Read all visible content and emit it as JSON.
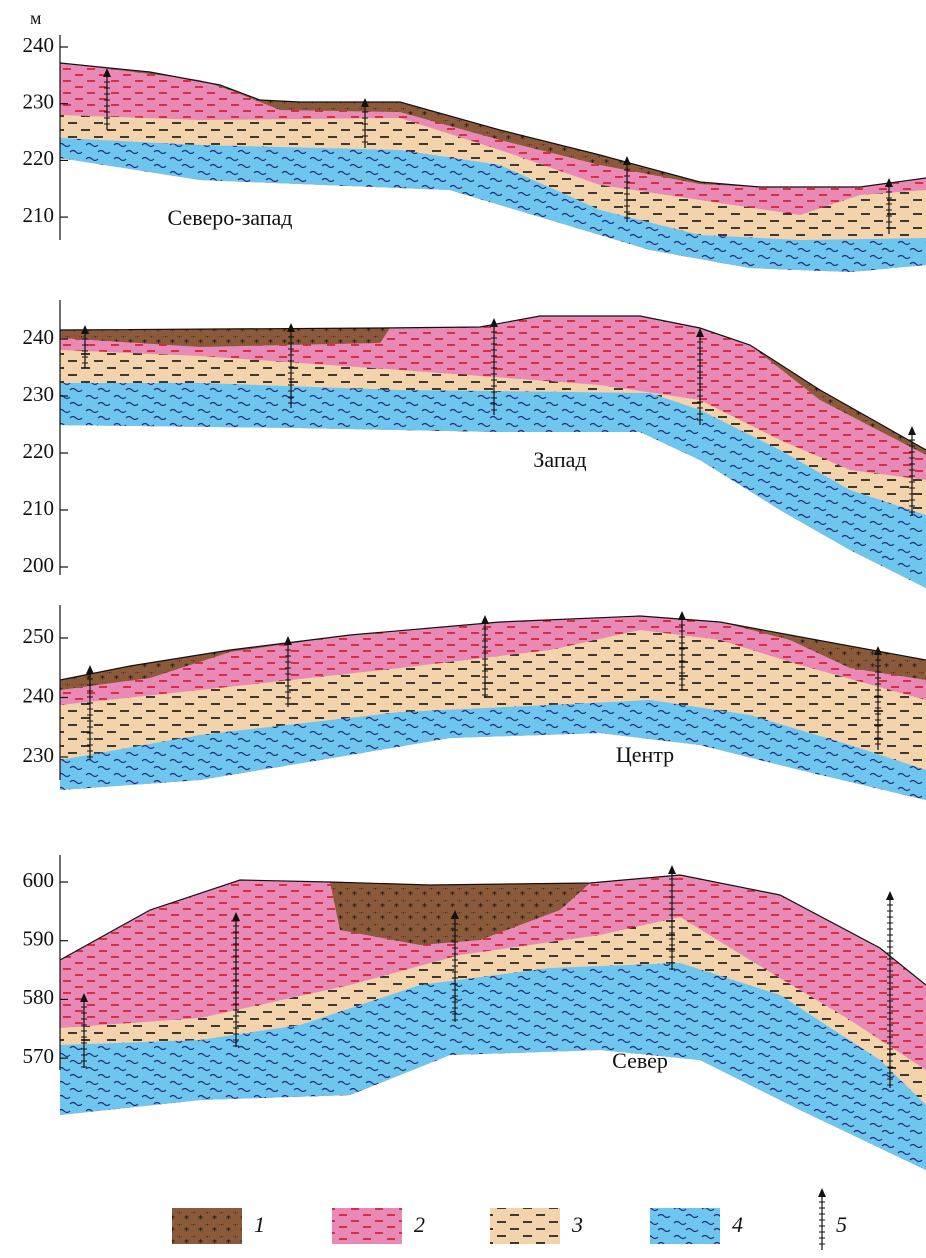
{
  "axis_unit": "м",
  "panels": [
    {
      "label": "Северо-запад",
      "yticks": [
        240,
        230,
        220,
        210
      ]
    },
    {
      "label": "Запад",
      "yticks": [
        240,
        230,
        220,
        210,
        200
      ]
    },
    {
      "label": "Центр",
      "yticks": [
        250,
        240,
        230
      ]
    },
    {
      "label": "Север",
      "yticks": [
        600,
        590,
        580,
        570
      ]
    }
  ],
  "legend": [
    {
      "label": "1"
    },
    {
      "label": "2"
    },
    {
      "label": "3"
    },
    {
      "label": "4"
    },
    {
      "label": "5"
    }
  ]
}
